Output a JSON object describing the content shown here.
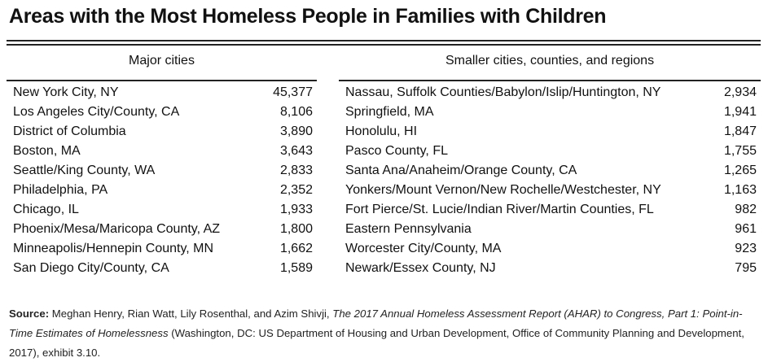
{
  "title": "Areas with the Most Homeless People in Families with Children",
  "major_cities": {
    "header": "Major cities",
    "rows": [
      {
        "name": "New York City, NY",
        "value": "45,377"
      },
      {
        "name": "Los Angeles City/County, CA",
        "value": "8,106"
      },
      {
        "name": "District of Columbia",
        "value": "3,890"
      },
      {
        "name": "Boston, MA",
        "value": "3,643"
      },
      {
        "name": "Seattle/King County, WA",
        "value": "2,833"
      },
      {
        "name": "Philadelphia, PA",
        "value": "2,352"
      },
      {
        "name": "Chicago, IL",
        "value": "1,933"
      },
      {
        "name": "Phoenix/Mesa/Maricopa County, AZ",
        "value": "1,800"
      },
      {
        "name": "Minneapolis/Hennepin County, MN",
        "value": "1,662"
      },
      {
        "name": "San Diego City/County, CA",
        "value": "1,589"
      }
    ]
  },
  "smaller_areas": {
    "header": "Smaller cities, counties, and regions",
    "rows": [
      {
        "name": "Nassau, Suffolk Counties/Babylon/Islip/Huntington, NY",
        "value": "2,934"
      },
      {
        "name": "Springfield, MA",
        "value": "1,941"
      },
      {
        "name": "Honolulu, HI",
        "value": "1,847"
      },
      {
        "name": "Pasco County, FL",
        "value": "1,755"
      },
      {
        "name": "Santa Ana/Anaheim/Orange County, CA",
        "value": "1,265"
      },
      {
        "name": "Yonkers/Mount Vernon/New Rochelle/Westchester, NY",
        "value": "1,163"
      },
      {
        "name": "Fort Pierce/St. Lucie/Indian River/Martin Counties, FL",
        "value": "982"
      },
      {
        "name": "Eastern Pennsylvania",
        "value": "961"
      },
      {
        "name": "Worcester City/County, MA",
        "value": "923"
      },
      {
        "name": "Newark/Essex County, NJ",
        "value": "795"
      }
    ]
  },
  "source": {
    "label": "Source:",
    "authors": " Meghan Henry, Rian Watt, Lily Rosenthal, and Azim Shivji, ",
    "work_title": "The 2017 Annual Homeless Assessment Report (AHAR) to Congress, Part 1: Point-in-Time Estimates of Homelessness",
    "rest": " (Washington, DC: US Department of Housing and Urban Development, Office of Community Planning and Development, 2017), exhibit 3.10."
  }
}
